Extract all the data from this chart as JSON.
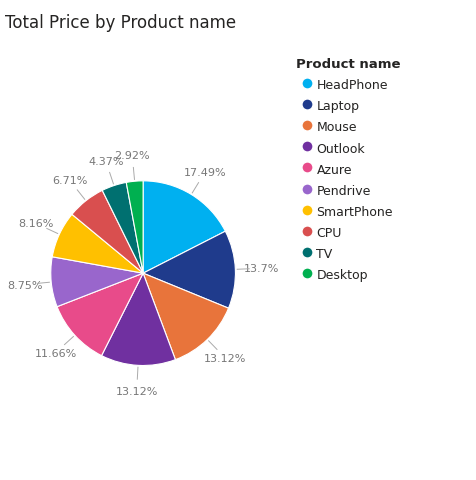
{
  "title": "Total Price by Product name",
  "legend_title": "Product name",
  "labels": [
    "HeadPhone",
    "Laptop",
    "Mouse",
    "Outlook",
    "Azure",
    "Pendrive",
    "SmartPhone",
    "CPU",
    "TV",
    "Desktop"
  ],
  "values": [
    17.49,
    13.7,
    13.12,
    13.12,
    11.66,
    8.75,
    8.16,
    6.71,
    4.37,
    2.92
  ],
  "colors": [
    "#00B0F0",
    "#1F3B8C",
    "#E8743B",
    "#7030A0",
    "#E84B8A",
    "#9966CC",
    "#FFC000",
    "#D94F4F",
    "#007070",
    "#00B050"
  ],
  "background_color": "#FFFFFF",
  "title_color": "#252423",
  "title_fontsize": 12,
  "legend_fontsize": 9,
  "label_fontsize": 8,
  "label_color": "#777777",
  "startangle": 90
}
